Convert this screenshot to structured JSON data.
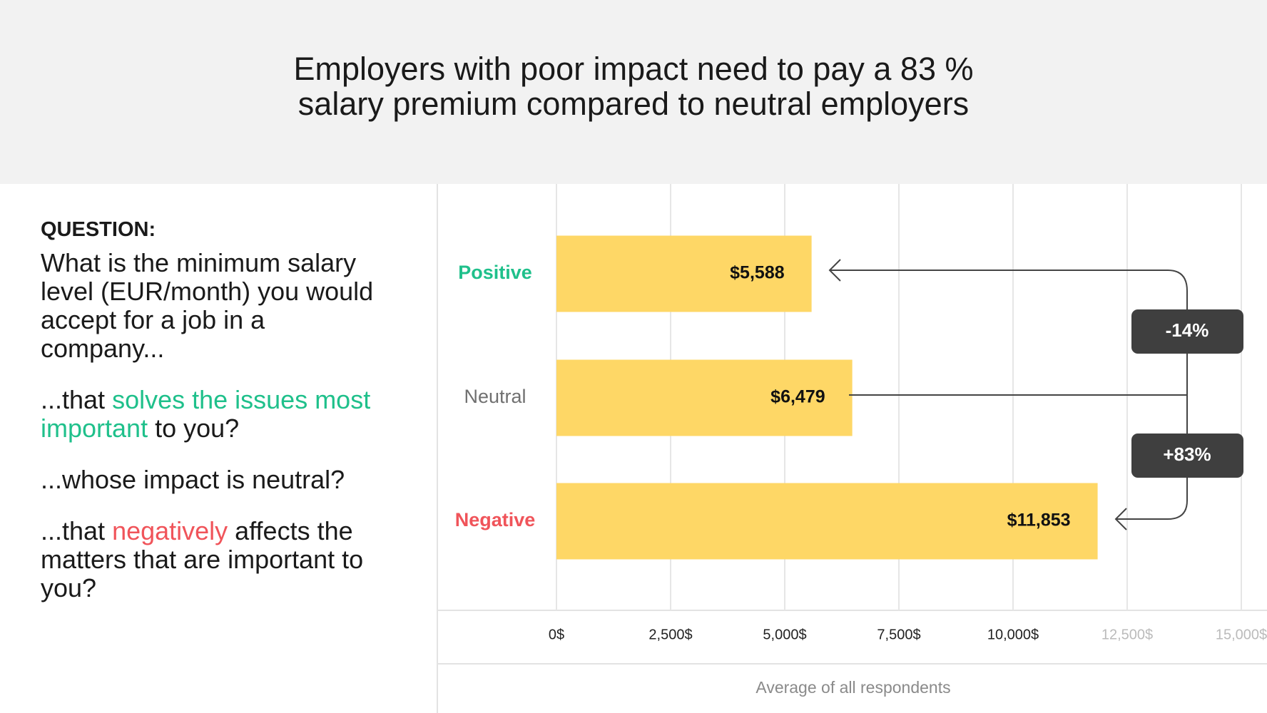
{
  "chart_data": {
    "type": "bar",
    "orientation": "horizontal",
    "title": [
      "Employers with poor impact need to pay a 83 %",
      "salary premium compared to neutral employers"
    ],
    "categories": [
      "Positive",
      "Neutral",
      "Negative"
    ],
    "category_colors": [
      "#1fc08b",
      "#707070",
      "#f0545a"
    ],
    "values": [
      5588,
      6479,
      11853
    ],
    "value_labels": [
      "$5,588",
      "$6,479",
      "$11,853"
    ],
    "color": "#fed766",
    "xlim": [
      0,
      15000
    ],
    "xticks": [
      {
        "value": 0,
        "label": "0$"
      },
      {
        "value": 2500,
        "label": "2,500$"
      },
      {
        "value": 5000,
        "label": "5,000$"
      },
      {
        "value": 7500,
        "label": "7,500$"
      },
      {
        "value": 10000,
        "label": "10,000$"
      },
      {
        "value": 12500,
        "label": "12,500$"
      },
      {
        "value": 15000,
        "label": "15,000$"
      }
    ],
    "xlabel": "Average of all respondents",
    "grid": true,
    "annotations": [
      "-14%",
      "+83%"
    ]
  },
  "question": {
    "heading": "QUESTION:",
    "text": "What is the minimum salary level (EUR/month) you would accept for a job in a company...",
    "options": [
      [
        "...that ",
        "solves the issues most important",
        " to you?"
      ],
      [
        "...whose impact is neutral?"
      ],
      [
        "...that ",
        "negatively",
        " affects the matters that are important to you?"
      ]
    ]
  }
}
